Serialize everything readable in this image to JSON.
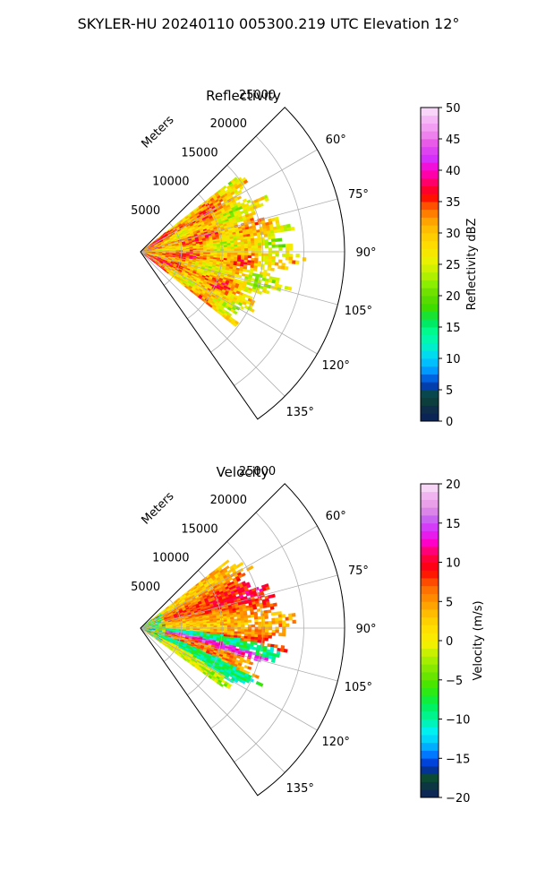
{
  "suptitle": "SKYLER-HU  20240110  005300.219 UTC Elevation 12°",
  "chart_data": [
    {
      "type": "heatmap",
      "title": "Reflectivity",
      "projection": "polar sector",
      "azimuth_range_deg": [
        45,
        145
      ],
      "range_max_m": 25000,
      "range_label": "Meters",
      "range_ticks": [
        "5000",
        "10000",
        "15000",
        "20000",
        "25000"
      ],
      "azimuth_ticks": [
        "60°",
        "75°",
        "90°",
        "105°",
        "120°",
        "135°"
      ],
      "colorbar": {
        "label": "Reflectivity dBZ",
        "range": [
          0,
          50
        ],
        "ticks": [
          "0",
          "5",
          "10",
          "15",
          "20",
          "25",
          "30",
          "35",
          "40",
          "45",
          "50"
        ]
      },
      "data_extent": "echoes from about 52° to 128° azimuth, out to roughly 14000–19000 m",
      "grid": true
    },
    {
      "type": "heatmap",
      "title": "Velocity",
      "projection": "polar sector",
      "azimuth_range_deg": [
        45,
        145
      ],
      "range_max_m": 25000,
      "range_label": "Meters",
      "range_ticks": [
        "5000",
        "10000",
        "15000",
        "20000",
        "25000"
      ],
      "azimuth_ticks": [
        "60°",
        "75°",
        "90°",
        "105°",
        "120°",
        "135°"
      ],
      "colorbar": {
        "label": "Velocity (m/s)",
        "range": [
          -20,
          20
        ],
        "ticks": [
          "−20",
          "−15",
          "−10",
          "−5",
          "0",
          "5",
          "10",
          "15",
          "20"
        ]
      },
      "data_extent": "echoes from about 52° to 125° azimuth, out to roughly 13000–18000 m",
      "grid": true
    }
  ]
}
